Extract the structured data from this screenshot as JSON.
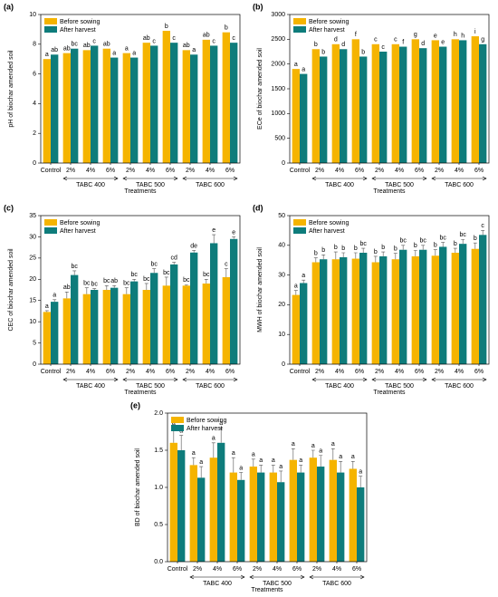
{
  "chart_data": [
    {
      "type": "bar",
      "panel_label": "(a)",
      "ylabel": "pH of biochar amended soil",
      "xlabel": "Treatments",
      "categories": [
        "Control",
        "2%",
        "4%",
        "6%",
        "2%",
        "4%",
        "6%",
        "2%",
        "4%",
        "6%"
      ],
      "groups": [
        "TABC 400",
        "TABC 500",
        "TABC 600"
      ],
      "series": [
        {
          "name": "Before sowing",
          "color": "#f5b400",
          "values": [
            7.0,
            7.4,
            7.6,
            7.7,
            7.4,
            8.1,
            8.9,
            7.6,
            8.3,
            8.8
          ],
          "letters": [
            "a",
            "ab",
            "ab",
            "ab",
            "a",
            "ab",
            "b",
            "ab",
            "ab",
            "b"
          ]
        },
        {
          "name": "After harvest",
          "color": "#0e7c7b",
          "values": [
            7.3,
            7.7,
            7.9,
            7.1,
            7.1,
            7.9,
            8.1,
            7.3,
            7.9,
            8.1
          ],
          "letters": [
            "ab",
            "bc",
            "c",
            "a",
            "a",
            "c",
            "c",
            "a",
            "c",
            "c"
          ]
        }
      ],
      "ylim": [
        0,
        10
      ],
      "yticks": [
        0,
        2,
        4,
        6,
        8,
        10
      ],
      "legend": "upper left"
    },
    {
      "type": "bar",
      "panel_label": "(b)",
      "ylabel": "ECe of biochar amended soil",
      "xlabel": "Treatments",
      "categories": [
        "Control",
        "2%",
        "4%",
        "6%",
        "2%",
        "4%",
        "6%",
        "2%",
        "4%",
        "6%"
      ],
      "groups": [
        "TABC 400",
        "TABC 500",
        "TABC 600"
      ],
      "series": [
        {
          "name": "Before sowing",
          "color": "#f5b400",
          "values": [
            1900,
            2300,
            2400,
            2500,
            2400,
            2400,
            2500,
            2480,
            2500,
            2560
          ],
          "letters": [
            "a",
            "b",
            "d",
            "f",
            "c",
            "c",
            "g",
            "e",
            "h",
            "i"
          ]
        },
        {
          "name": "After harvest",
          "color": "#0e7c7b",
          "values": [
            1800,
            2150,
            2300,
            2150,
            2250,
            2350,
            2320,
            2350,
            2480,
            2400
          ],
          "letters": [
            "a",
            "b",
            "d",
            "b",
            "c",
            "f",
            "d",
            "e",
            "h",
            "g"
          ]
        }
      ],
      "ylim": [
        0,
        3000
      ],
      "yticks": [
        0,
        500,
        1000,
        1500,
        2000,
        2500,
        3000
      ],
      "legend": "upper left"
    },
    {
      "type": "bar",
      "panel_label": "(c)",
      "ylabel": "CEC of biochar amended soil",
      "xlabel": "Treatments",
      "categories": [
        "Control",
        "2%",
        "4%",
        "6%",
        "2%",
        "4%",
        "6%",
        "2%",
        "4%",
        "6%"
      ],
      "groups": [
        "TABC 400",
        "TABC 500",
        "TABC 600"
      ],
      "series": [
        {
          "name": "Before sowing",
          "color": "#f5b400",
          "values": [
            12.3,
            15.5,
            16.5,
            17.5,
            16.5,
            17.5,
            18.5,
            18.5,
            19,
            20.5
          ],
          "errors": [
            0.3,
            1.5,
            1.5,
            1,
            1.5,
            1.5,
            2,
            0.2,
            1,
            2
          ],
          "letters": [
            "a",
            "ab",
            "bc",
            "bc",
            "bc",
            "bc",
            "bc",
            "bc",
            "bc",
            "c"
          ]
        },
        {
          "name": "After harvest",
          "color": "#0e7c7b",
          "values": [
            14.7,
            21,
            17.5,
            18,
            19.5,
            21.5,
            23.5,
            26.3,
            28.5,
            29.5
          ],
          "errors": [
            0.5,
            1,
            0.3,
            0.5,
            0.5,
            1,
            0.5,
            0.5,
            2,
            0.5
          ],
          "letters": [
            "a",
            "bc",
            "bc",
            "ab",
            "bc",
            "bc",
            "cd",
            "de",
            "e",
            "e"
          ]
        }
      ],
      "ylim": [
        0,
        35
      ],
      "yticks": [
        0,
        5,
        10,
        15,
        20,
        25,
        30,
        35
      ],
      "legend": "upper left"
    },
    {
      "type": "bar",
      "panel_label": "(d)",
      "ylabel": "MWH of biochar amended soil",
      "xlabel": "Treatments",
      "categories": [
        "Control",
        "2%",
        "4%",
        "6%",
        "2%",
        "4%",
        "6%",
        "2%",
        "4%",
        "6%"
      ],
      "groups": [
        "TABC 400",
        "TABC 500",
        "TABC 600"
      ],
      "series": [
        {
          "name": "Before sowing",
          "color": "#f5b400",
          "values": [
            23.3,
            34.3,
            35.3,
            35.5,
            34.3,
            35.3,
            36.3,
            36.5,
            37.5,
            38.8
          ],
          "errors": [
            1.5,
            1.5,
            2.5,
            2,
            2,
            2,
            2,
            2,
            1.5,
            2
          ],
          "letters": [
            "a",
            "b",
            "b",
            "b",
            "b",
            "b",
            "b",
            "b",
            "b",
            "b"
          ]
        },
        {
          "name": "After harvest",
          "color": "#0e7c7b",
          "values": [
            27.3,
            35.3,
            36,
            37.5,
            36.3,
            38.5,
            38.5,
            39.5,
            40.5,
            43.5
          ],
          "errors": [
            1,
            1.5,
            1.5,
            1.5,
            1.5,
            1.5,
            1.5,
            1.5,
            1.5,
            1.5
          ],
          "letters": [
            "a",
            "b",
            "b",
            "bc",
            "b",
            "bc",
            "bc",
            "bc",
            "bc",
            "c"
          ]
        }
      ],
      "ylim": [
        0,
        50
      ],
      "yticks": [
        0,
        10,
        20,
        30,
        40,
        50
      ],
      "legend": "upper left"
    },
    {
      "type": "bar",
      "panel_label": "(e)",
      "ylabel": "BD of biochar amended soil",
      "xlabel": "Treatments",
      "categories": [
        "Control",
        "2%",
        "4%",
        "6%",
        "2%",
        "4%",
        "6%",
        "2%",
        "4%",
        "6%"
      ],
      "groups": [
        "TABC 400",
        "TABC 500",
        "TABC 600"
      ],
      "series": [
        {
          "name": "Before sowing",
          "color": "#f5b400",
          "values": [
            1.6,
            1.3,
            1.4,
            1.2,
            1.28,
            1.2,
            1.37,
            1.4,
            1.37,
            1.25
          ],
          "errors": [
            0.2,
            0.1,
            0.2,
            0.2,
            0.1,
            0.1,
            0.15,
            0.1,
            0.15,
            0.1
          ],
          "letters": [
            "a",
            "a",
            "a",
            "a",
            "a",
            "a",
            "a",
            "a",
            "a",
            "a"
          ]
        },
        {
          "name": "After harvest",
          "color": "#0e7c7b",
          "values": [
            1.5,
            1.13,
            1.6,
            1.1,
            1.2,
            1.07,
            1.2,
            1.28,
            1.2,
            1.0
          ],
          "errors": [
            0.2,
            0.15,
            0.2,
            0.1,
            0.1,
            0.15,
            0.1,
            0.15,
            0.15,
            0.15
          ],
          "letters": [
            "a",
            "a",
            "a",
            "a",
            "a",
            "a",
            "a",
            "a",
            "a",
            "a"
          ]
        }
      ],
      "ylim": [
        0,
        2
      ],
      "yticks": [
        {
          "value": 0,
          "label": "0.0"
        },
        0.5,
        {
          "value": 1,
          "label": "1.0"
        },
        1.5,
        {
          "value": 2,
          "label": "2.0"
        }
      ],
      "legend": "upper left"
    }
  ]
}
